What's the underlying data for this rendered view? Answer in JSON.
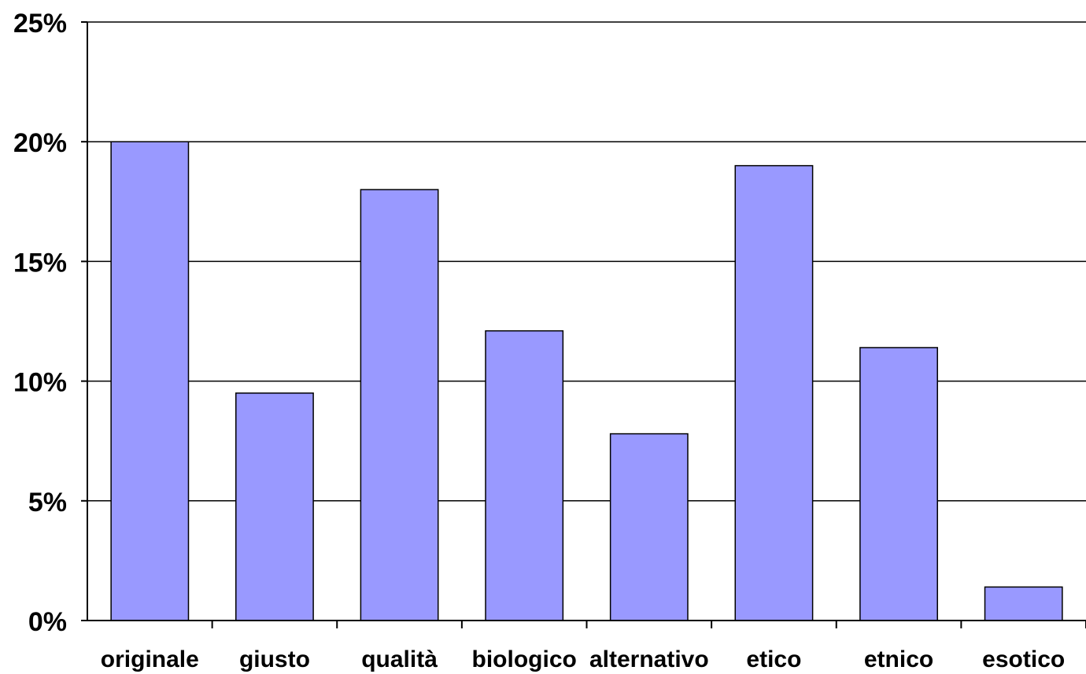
{
  "chart_data": {
    "type": "bar",
    "categories": [
      "originale",
      "giusto",
      "qualità",
      "biologico",
      "alternativo",
      "etico",
      "etnico",
      "esotico"
    ],
    "values": [
      20.0,
      9.5,
      18.0,
      12.1,
      7.8,
      19.0,
      11.4,
      1.4
    ],
    "ylim": [
      0,
      25
    ],
    "yticks": [
      0,
      5,
      10,
      15,
      20,
      25
    ],
    "ytick_labels": [
      "0%",
      "5%",
      "10%",
      "15%",
      "20%",
      "25%"
    ],
    "grid": true,
    "bar_color": "#9999ff",
    "bar_edge_color": "#000000"
  }
}
